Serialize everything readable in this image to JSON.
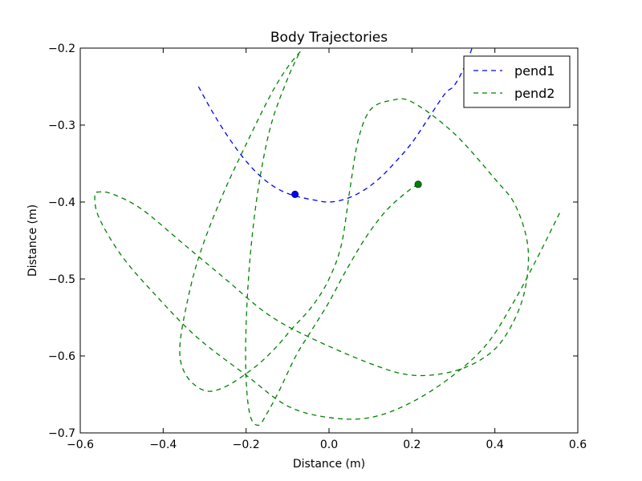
{
  "chart_data": {
    "type": "line",
    "title": "Body Trajectories",
    "xlabel": "Distance (m)",
    "ylabel": "Distance (m)",
    "xlim": [
      -0.6,
      0.6
    ],
    "ylim": [
      -0.7,
      -0.2
    ],
    "x_ticks": [
      -0.6,
      -0.4,
      -0.2,
      0.0,
      0.2,
      0.4,
      0.6
    ],
    "y_ticks": [
      -0.7,
      -0.6,
      -0.5,
      -0.4,
      -0.3,
      -0.2
    ],
    "x_tick_labels": [
      "−0.6",
      "−0.4",
      "−0.2",
      "0.0",
      "0.2",
      "0.4",
      "0.6"
    ],
    "y_tick_labels": [
      "−0.7",
      "−0.6",
      "−0.5",
      "−0.4",
      "−0.3",
      "−0.2"
    ],
    "grid": false,
    "legend_position": "top-right",
    "series": [
      {
        "name": "pend1",
        "color": "#0000ff",
        "style": "dashed",
        "marker_point": [
          -0.082,
          -0.39
        ],
        "points": [
          [
            -0.315,
            -0.25
          ],
          [
            -0.28,
            -0.284
          ],
          [
            -0.24,
            -0.318
          ],
          [
            -0.2,
            -0.347
          ],
          [
            -0.16,
            -0.369
          ],
          [
            -0.12,
            -0.384
          ],
          [
            -0.082,
            -0.392
          ],
          [
            -0.04,
            -0.397
          ],
          [
            0.0,
            -0.4
          ],
          [
            0.04,
            -0.396
          ],
          [
            0.08,
            -0.386
          ],
          [
            0.12,
            -0.37
          ],
          [
            0.16,
            -0.348
          ],
          [
            0.2,
            -0.323
          ],
          [
            0.24,
            -0.291
          ],
          [
            0.28,
            -0.259
          ],
          [
            0.3,
            -0.25
          ],
          [
            0.32,
            -0.232
          ],
          [
            0.34,
            -0.207
          ],
          [
            0.345,
            -0.2
          ]
        ]
      },
      {
        "name": "pend2",
        "color": "#008000",
        "style": "dashed",
        "marker_point": [
          0.215,
          -0.377
        ],
        "points": [
          [
            0.215,
            -0.377
          ],
          [
            0.19,
            -0.386
          ],
          [
            0.14,
            -0.41
          ],
          [
            0.09,
            -0.445
          ],
          [
            0.04,
            -0.49
          ],
          [
            0.0,
            -0.53
          ],
          [
            -0.04,
            -0.565
          ],
          [
            -0.08,
            -0.6
          ],
          [
            -0.12,
            -0.645
          ],
          [
            -0.15,
            -0.675
          ],
          [
            -0.17,
            -0.69
          ],
          [
            -0.19,
            -0.678
          ],
          [
            -0.2,
            -0.63
          ],
          [
            -0.2,
            -0.56
          ],
          [
            -0.19,
            -0.47
          ],
          [
            -0.17,
            -0.38
          ],
          [
            -0.14,
            -0.3
          ],
          [
            -0.1,
            -0.24
          ],
          [
            -0.075,
            -0.21
          ],
          [
            -0.07,
            -0.205
          ],
          [
            -0.1,
            -0.225
          ],
          [
            -0.14,
            -0.26
          ],
          [
            -0.2,
            -0.325
          ],
          [
            -0.26,
            -0.395
          ],
          [
            -0.31,
            -0.465
          ],
          [
            -0.34,
            -0.525
          ],
          [
            -0.36,
            -0.59
          ],
          [
            -0.345,
            -0.625
          ],
          [
            -0.3,
            -0.645
          ],
          [
            -0.25,
            -0.64
          ],
          [
            -0.18,
            -0.615
          ],
          [
            -0.13,
            -0.59
          ],
          [
            -0.09,
            -0.565
          ],
          [
            -0.04,
            -0.535
          ],
          [
            0.0,
            -0.5
          ],
          [
            0.03,
            -0.455
          ],
          [
            0.05,
            -0.385
          ],
          [
            0.07,
            -0.32
          ],
          [
            0.1,
            -0.28
          ],
          [
            0.15,
            -0.268
          ],
          [
            0.2,
            -0.27
          ],
          [
            0.3,
            -0.31
          ],
          [
            0.4,
            -0.37
          ],
          [
            0.45,
            -0.405
          ],
          [
            0.48,
            -0.46
          ],
          [
            0.47,
            -0.52
          ],
          [
            0.43,
            -0.57
          ],
          [
            0.38,
            -0.6
          ],
          [
            0.3,
            -0.62
          ],
          [
            0.2,
            -0.625
          ],
          [
            0.1,
            -0.61
          ],
          [
            -0.05,
            -0.575
          ],
          [
            -0.15,
            -0.545
          ],
          [
            -0.25,
            -0.5
          ],
          [
            -0.35,
            -0.455
          ],
          [
            -0.45,
            -0.41
          ],
          [
            -0.52,
            -0.39
          ],
          [
            -0.555,
            -0.387
          ],
          [
            -0.565,
            -0.392
          ],
          [
            -0.555,
            -0.42
          ],
          [
            -0.5,
            -0.47
          ],
          [
            -0.42,
            -0.52
          ],
          [
            -0.32,
            -0.575
          ],
          [
            -0.2,
            -0.625
          ],
          [
            -0.1,
            -0.665
          ],
          [
            0.0,
            -0.68
          ],
          [
            0.1,
            -0.68
          ],
          [
            0.2,
            -0.66
          ],
          [
            0.3,
            -0.625
          ],
          [
            0.38,
            -0.585
          ],
          [
            0.44,
            -0.535
          ],
          [
            0.5,
            -0.475
          ],
          [
            0.56,
            -0.41
          ]
        ]
      }
    ]
  }
}
